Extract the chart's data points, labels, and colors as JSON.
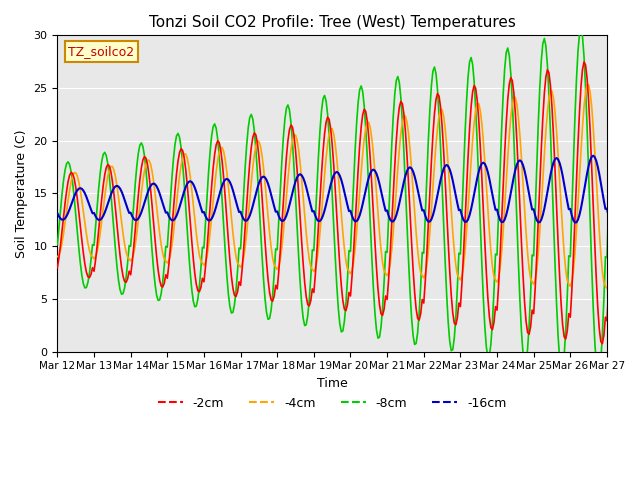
{
  "title": "Tonzi Soil CO2 Profile: Tree (West) Temperatures",
  "xlabel": "Time",
  "ylabel": "Soil Temperature (C)",
  "ylim": [
    0,
    30
  ],
  "xlim": [
    0,
    360
  ],
  "background_color": "#e8e8e8",
  "plot_bg": "#e8e8e8",
  "colors": {
    "-2cm": "#ff0000",
    "-4cm": "#ffa500",
    "-8cm": "#00cc00",
    "-16cm": "#0000cc"
  },
  "legend_label": "TZ_soilco2",
  "legend_bg": "#ffffcc",
  "legend_border": "#cc8800",
  "tick_labels": [
    "Mar 12",
    "Mar 13",
    "Mar 14",
    "Mar 15",
    "Mar 16",
    "Mar 17",
    "Mar 18",
    "Mar 19",
    "Mar 20",
    "Mar 21",
    "Mar 22",
    "Mar 23",
    "Mar 24",
    "Mar 25",
    "Mar 26",
    "Mar 27"
  ],
  "tick_positions": [
    0,
    24,
    48,
    72,
    96,
    120,
    144,
    168,
    192,
    216,
    240,
    264,
    288,
    312,
    336,
    360
  ]
}
